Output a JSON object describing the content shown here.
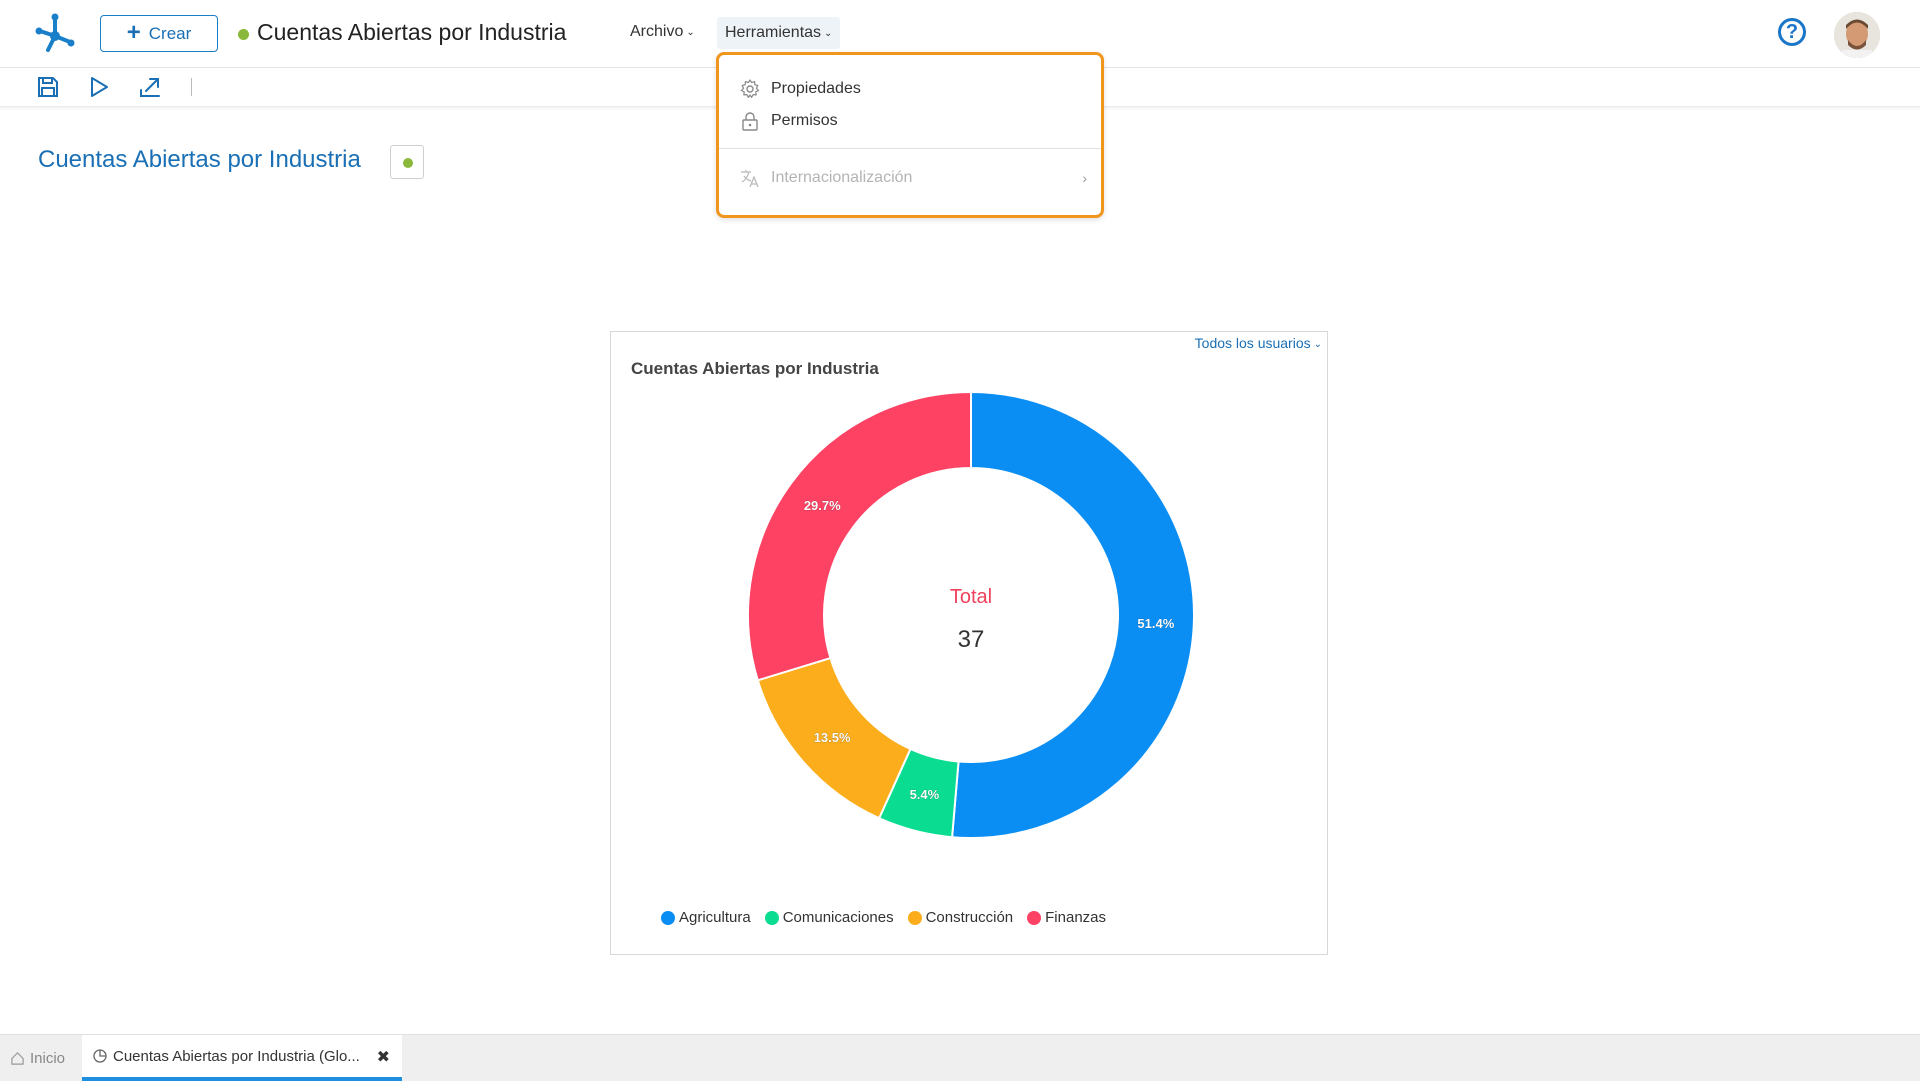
{
  "header": {
    "create_label": "Crear",
    "app_title": "Cuentas Abiertas por Industria",
    "menu_archivo": "Archivo",
    "menu_herramientas": "Herramientas",
    "help_symbol": "?"
  },
  "dropdown": {
    "items": [
      {
        "label": "Propiedades",
        "icon": "gear-icon"
      },
      {
        "label": "Permisos",
        "icon": "lock-icon"
      },
      {
        "label": "Internacionalización",
        "icon": "translate-icon",
        "disabled": true
      }
    ]
  },
  "page": {
    "title": "Cuentas Abiertas por Industria"
  },
  "card": {
    "filter_label": "Todos los usuarios",
    "title": "Cuentas Abiertas por Industria",
    "center_label": "Total",
    "center_value": "37"
  },
  "chart_data": {
    "type": "pie",
    "donut": true,
    "title": "Cuentas Abiertas por Industria",
    "categories": [
      "Agricultura",
      "Comunicaciones",
      "Construcción",
      "Finanzas"
    ],
    "values": [
      19,
      2,
      5,
      11
    ],
    "percent_labels": [
      "51.4%",
      "5.4%",
      "13.5%",
      "29.7%"
    ],
    "colors": [
      "#0b8ef3",
      "#0adc91",
      "#fbad1b",
      "#fd4264"
    ],
    "total": 37,
    "legend_position": "bottom-left"
  },
  "bottom_tabs": {
    "home": "Inicio",
    "active": "Cuentas Abiertas por Industria (Glo..."
  }
}
